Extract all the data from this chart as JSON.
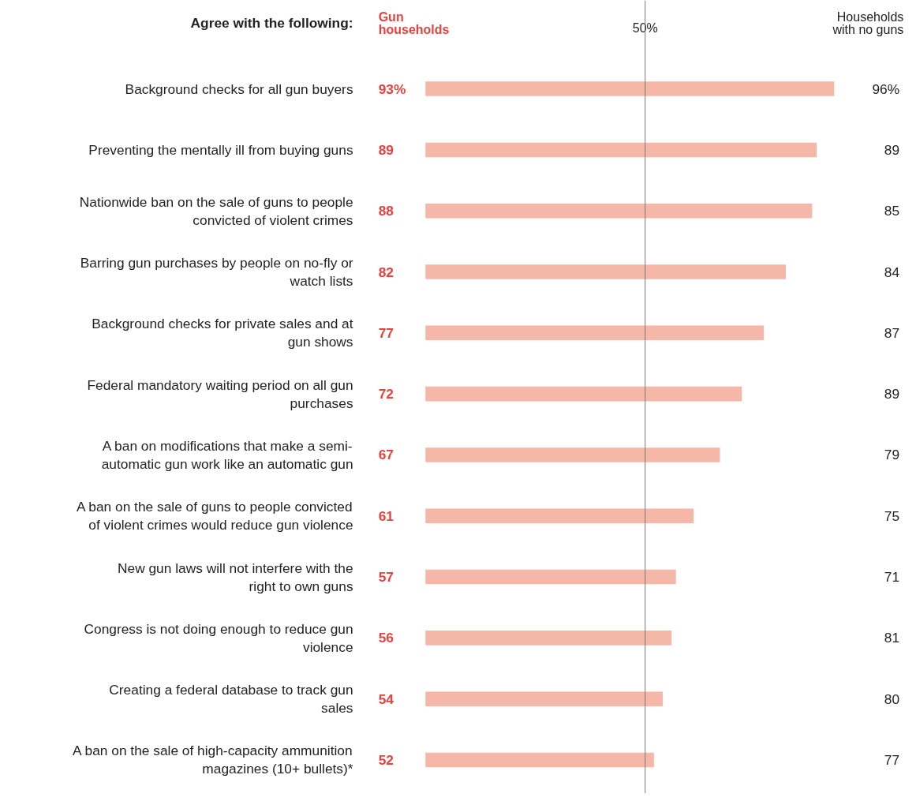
{
  "chart_data": {
    "type": "bar",
    "orientation": "horizontal",
    "categories": [
      "Background checks for all gun buyers",
      "Preventing the mentally ill from buying guns",
      "Nationwide ban on the sale of guns to people convicted of violent crimes",
      "Barring gun purchases by people on no-fly or watch lists",
      "Background checks for private sales and at gun shows",
      "Federal mandatory waiting period on all gun purchases",
      "A ban on modifications that make a semi-automatic gun work like an automatic gun",
      "A ban on the sale of guns to people convicted of violent crimes would reduce gun violence",
      "New gun laws will not interfere with the right to own guns",
      "Congress is not doing enough to reduce gun violence",
      "Creating a federal database to track gun sales",
      "A ban on the sale of high-capacity ammunition magazines (10+ bullets)*"
    ],
    "y2_categories": [
      "96%",
      "89",
      "85",
      "84",
      "87",
      "89",
      "79",
      "75",
      "71",
      "81",
      "80",
      "77"
    ],
    "series": [
      {
        "color": "#f5b8a8",
        "values": [
          93,
          89,
          88,
          82,
          77,
          72,
          67,
          61,
          57,
          56,
          54,
          52
        ],
        "value_labels": [
          "93%",
          "89",
          "88",
          "82",
          "77",
          "72",
          "67",
          "61",
          "57",
          "56",
          "54",
          "52"
        ]
      }
    ],
    "ref_lines": [
      {
        "axis": "x",
        "value": 50,
        "label": "50%",
        "color": "#777777"
      }
    ],
    "annotations": [
      "Agree with the following:",
      "Gun households",
      "Households with no guns"
    ]
  }
}
